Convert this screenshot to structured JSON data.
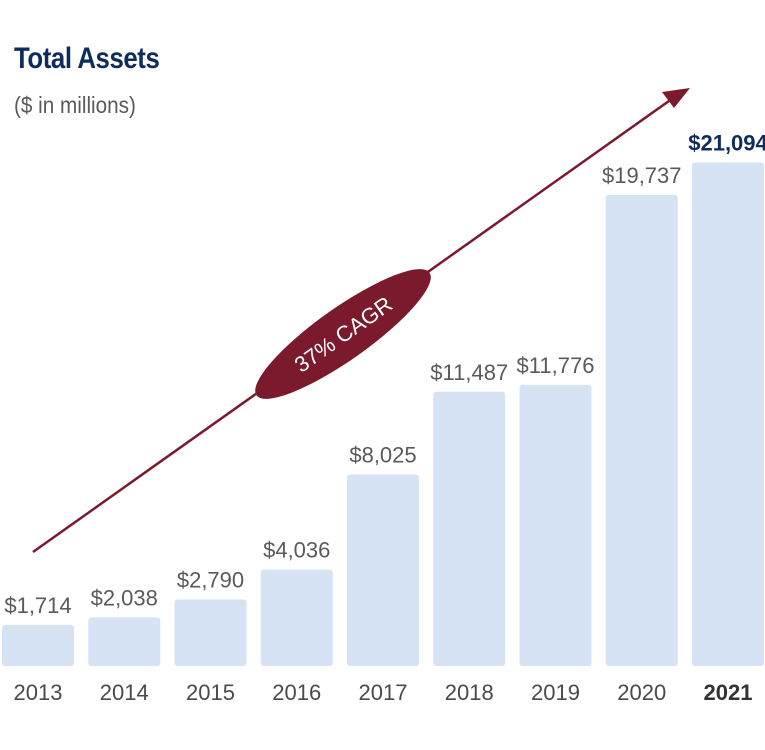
{
  "chart_data": {
    "type": "bar",
    "title": "Total Assets",
    "subtitle": "($ in millions)",
    "categories": [
      "2013",
      "2014",
      "2015",
      "2016",
      "2017",
      "2018",
      "2019",
      "2020",
      "2021"
    ],
    "values": [
      1714,
      2038,
      2790,
      4036,
      8025,
      11487,
      11776,
      19737,
      21094
    ],
    "value_labels": [
      "$1,714",
      "$2,038",
      "$2,790",
      "$4,036",
      "$8,025",
      "$11,487",
      "$11,776",
      "$19,737",
      "$21,094"
    ],
    "highlight_category": "2021",
    "annotation": "37% CAGR",
    "grid": false,
    "legend": "none",
    "colors": {
      "bar": "#d6e3f5",
      "title": "#0f2d5c",
      "highlight_label": "#0f2d5c",
      "value_label": "#5a5a5a",
      "arrow": "#7a1a2c"
    }
  }
}
